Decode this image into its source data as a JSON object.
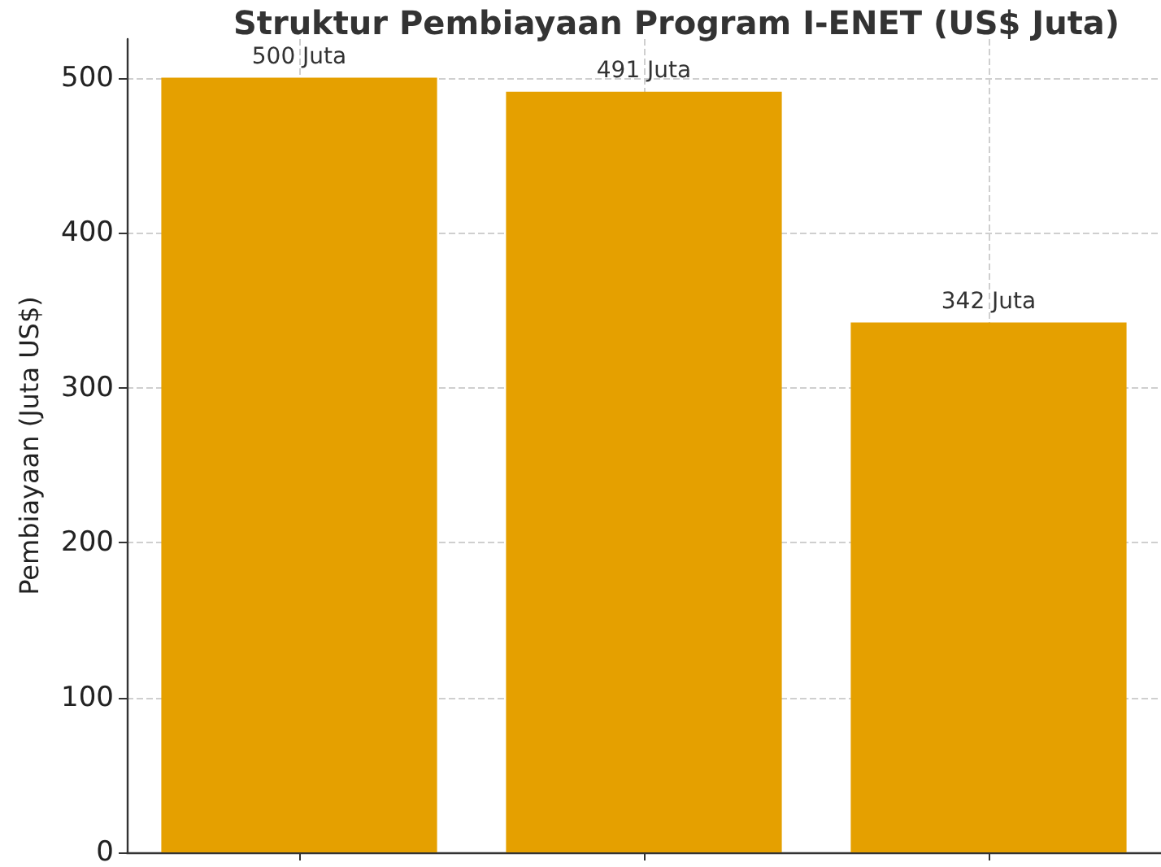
{
  "chart_data": {
    "type": "bar",
    "title": "Struktur Pembiayaan Program I-ENET (US$ Juta)",
    "ylabel": "Pembiayaan (Juta US$)",
    "categories": [
      null,
      null,
      null
    ],
    "values": [
      500,
      491,
      342
    ],
    "value_labels": [
      "500 Juta",
      "491 Juta",
      "342 Juta"
    ],
    "color": "#e5a000",
    "ylim": [
      0,
      525
    ],
    "yticks": [
      0,
      100,
      200,
      300,
      400,
      500
    ],
    "grid": true
  }
}
